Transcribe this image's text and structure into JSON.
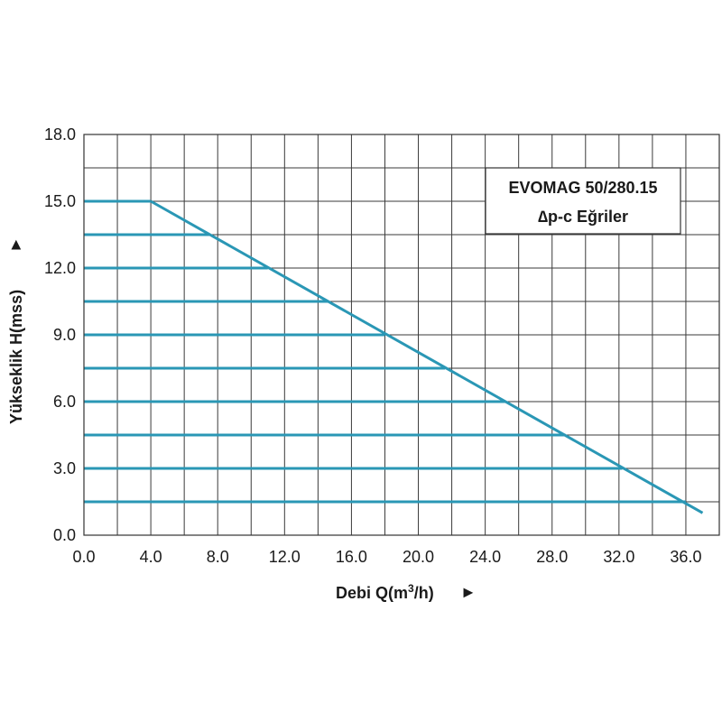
{
  "chart_data": {
    "type": "line",
    "title_line1": "EVOMAG 50/280.15",
    "title_line2": "∆p-c Eğriler",
    "xlabel": "Debi Q(m",
    "xlabel_sup": "3",
    "xlabel_tail": "/h)",
    "xlabel_arrow": "►",
    "ylabel": "Yükseklik H(mss)",
    "ylabel_arrow": "►",
    "xlim": [
      0,
      38
    ],
    "ylim": [
      0,
      18
    ],
    "x_ticks": [
      "0.0",
      "4.0",
      "8.0",
      "12.0",
      "16.0",
      "20.0",
      "24.0",
      "28.0",
      "32.0",
      "36.0"
    ],
    "y_ticks": [
      "0.0",
      "3.0",
      "6.0",
      "9.0",
      "12.0",
      "15.0",
      "18.0"
    ],
    "grid": true,
    "line_color": "#2a97b5",
    "series": [
      {
        "x": [
          0,
          4.0
        ],
        "y": [
          15.0,
          15.0
        ]
      },
      {
        "x": [
          0,
          7.5
        ],
        "y": [
          13.5,
          13.5
        ]
      },
      {
        "x": [
          0,
          11.0
        ],
        "y": [
          12.0,
          12.0
        ]
      },
      {
        "x": [
          0,
          14.6
        ],
        "y": [
          10.5,
          10.5
        ]
      },
      {
        "x": [
          0,
          18.0
        ],
        "y": [
          9.0,
          9.0
        ]
      },
      {
        "x": [
          0,
          21.6
        ],
        "y": [
          7.5,
          7.5
        ]
      },
      {
        "x": [
          0,
          25.2
        ],
        "y": [
          6.0,
          6.0
        ]
      },
      {
        "x": [
          0,
          28.8
        ],
        "y": [
          4.5,
          4.5
        ]
      },
      {
        "x": [
          0,
          32.2
        ],
        "y": [
          3.0,
          3.0
        ]
      },
      {
        "x": [
          0,
          36.0
        ],
        "y": [
          1.5,
          1.5
        ]
      },
      {
        "x": [
          4.0,
          37.0
        ],
        "y": [
          15.0,
          1.0
        ]
      }
    ]
  }
}
